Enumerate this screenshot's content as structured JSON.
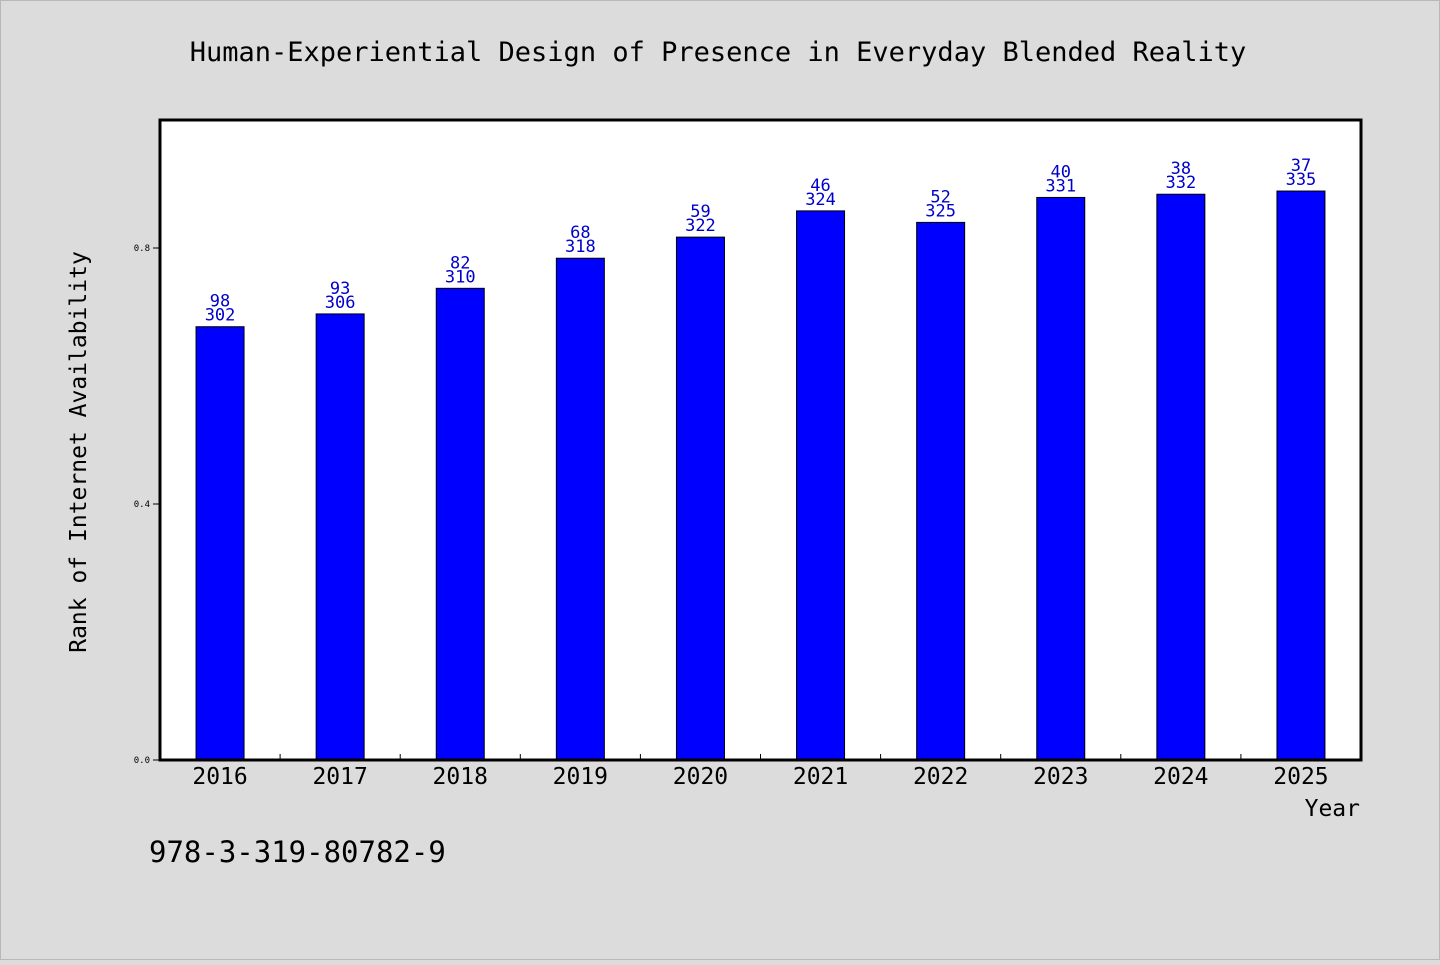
{
  "chart_data": {
    "type": "bar",
    "title": "Human-Experiential Design of Presence in Everyday Blended Reality",
    "xlabel": "Year",
    "ylabel": "Rank of Internet Availability",
    "ylim": [
      0,
      1.0
    ],
    "yticks": [
      {
        "value": 0.0,
        "label": "0.0"
      },
      {
        "value": 0.4,
        "label": "0.4"
      },
      {
        "value": 0.8,
        "label": "0.8"
      }
    ],
    "categories": [
      "2016",
      "2017",
      "2018",
      "2019",
      "2020",
      "2021",
      "2022",
      "2023",
      "2024",
      "2025"
    ],
    "values": [
      0.677,
      0.697,
      0.737,
      0.784,
      0.817,
      0.858,
      0.84,
      0.879,
      0.884,
      0.889
    ],
    "label_top": [
      "98",
      "93",
      "82",
      "68",
      "59",
      "46",
      "52",
      "40",
      "38",
      "37"
    ],
    "label_bottom": [
      "302",
      "306",
      "310",
      "318",
      "322",
      "324",
      "325",
      "331",
      "332",
      "335"
    ],
    "grid": false,
    "legend": "none",
    "bar_color": "#0000ff",
    "label_color": "#0000cc",
    "annotation": "978-3-319-80782-9"
  }
}
